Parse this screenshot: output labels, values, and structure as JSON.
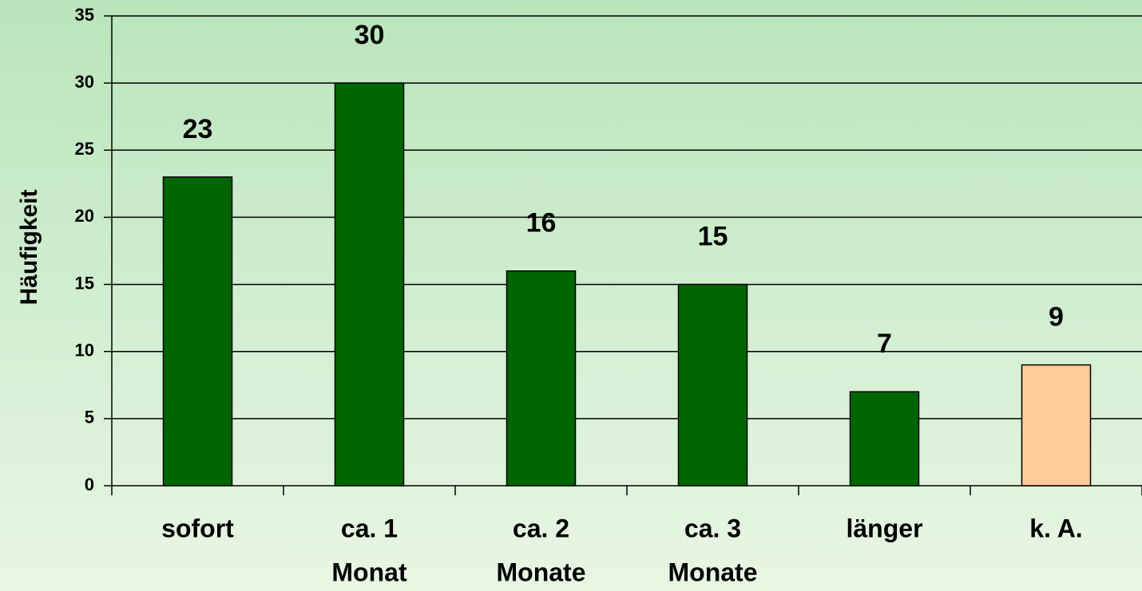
{
  "chart_data": {
    "type": "bar",
    "y_label": "Häufigkeit",
    "categories": [
      [
        "sofort"
      ],
      [
        "ca. 1",
        "Monat"
      ],
      [
        "ca. 2",
        "Monate"
      ],
      [
        "ca. 3",
        "Monate"
      ],
      [
        "länger"
      ],
      [
        "k. A."
      ]
    ],
    "values": [
      23,
      30,
      16,
      15,
      7,
      9
    ],
    "colors": [
      "#006600",
      "#006600",
      "#006600",
      "#006600",
      "#006600",
      "#ffcc99"
    ],
    "ylim": [
      0,
      35
    ],
    "yticks": [
      0,
      5,
      10,
      15,
      20,
      25,
      30,
      35
    ],
    "grid": true
  }
}
